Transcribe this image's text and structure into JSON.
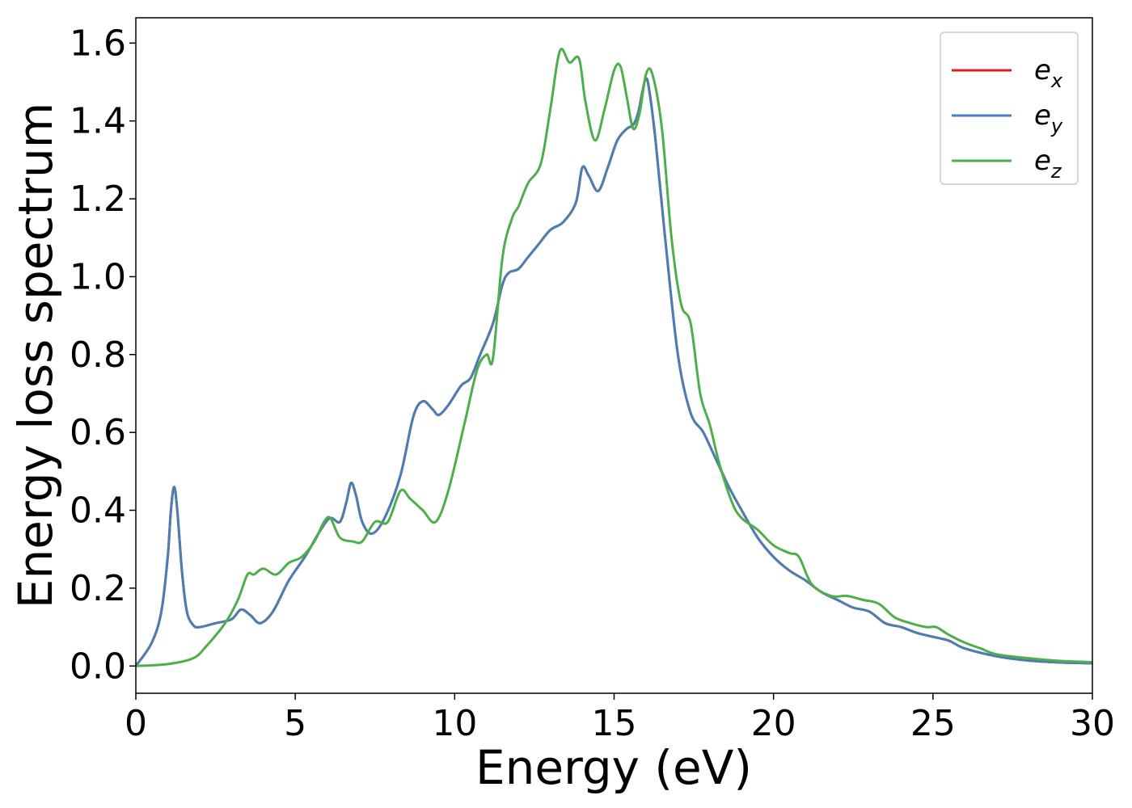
{
  "chart_data": {
    "type": "line",
    "title": "",
    "xlabel": "Energy (eV)",
    "ylabel": "Energy loss spectrum",
    "xlim": [
      0,
      30
    ],
    "ylim": [
      -0.07,
      1.665
    ],
    "xticks": [
      0,
      5,
      10,
      15,
      20,
      25,
      30
    ],
    "xtick_labels": [
      "0",
      "5",
      "10",
      "15",
      "20",
      "25",
      "30"
    ],
    "yticks": [
      0.0,
      0.2,
      0.4,
      0.6,
      0.8,
      1.0,
      1.2,
      1.4,
      1.6
    ],
    "ytick_labels": [
      "0.0",
      "0.2",
      "0.4",
      "0.6",
      "0.8",
      "1.0",
      "1.2",
      "1.4",
      "1.6"
    ],
    "grid": false,
    "legend_position": "top-right",
    "series": [
      {
        "name": "e_x",
        "legend_base": "e",
        "legend_sub": "x",
        "color": "#e41a1c",
        "x": [
          0,
          0.5,
          0.8,
          1.0,
          1.1,
          1.2,
          1.3,
          1.45,
          1.6,
          1.8,
          2.0,
          2.5,
          3.0,
          3.3,
          3.6,
          3.9,
          4.3,
          4.8,
          5.3,
          5.8,
          6.1,
          6.4,
          6.6,
          6.75,
          6.9,
          7.1,
          7.4,
          7.8,
          8.3,
          8.7,
          9.0,
          9.3,
          9.5,
          9.8,
          10.2,
          10.5,
          10.8,
          11.2,
          11.5,
          11.7,
          12.0,
          12.3,
          12.6,
          13.0,
          13.4,
          13.8,
          14.0,
          14.2,
          14.5,
          14.8,
          15.1,
          15.4,
          15.6,
          15.75,
          15.9,
          16.0,
          16.1,
          16.3,
          16.6,
          17.0,
          17.4,
          17.8,
          18.2,
          18.6,
          19.0,
          19.5,
          20.0,
          20.5,
          21.0,
          21.5,
          22.0,
          22.5,
          23.0,
          23.5,
          24.0,
          24.5,
          25.0,
          25.5,
          26.0,
          27.0,
          28.0,
          29.0,
          30.0
        ],
        "values": [
          0.0,
          0.06,
          0.14,
          0.28,
          0.4,
          0.46,
          0.4,
          0.24,
          0.14,
          0.105,
          0.1,
          0.11,
          0.12,
          0.145,
          0.13,
          0.11,
          0.14,
          0.22,
          0.28,
          0.35,
          0.38,
          0.37,
          0.42,
          0.47,
          0.44,
          0.37,
          0.34,
          0.38,
          0.49,
          0.64,
          0.68,
          0.66,
          0.645,
          0.67,
          0.72,
          0.74,
          0.8,
          0.88,
          0.98,
          1.01,
          1.02,
          1.05,
          1.08,
          1.12,
          1.14,
          1.19,
          1.28,
          1.26,
          1.22,
          1.28,
          1.35,
          1.38,
          1.39,
          1.42,
          1.48,
          1.51,
          1.48,
          1.35,
          1.1,
          0.8,
          0.65,
          0.6,
          0.53,
          0.46,
          0.4,
          0.33,
          0.28,
          0.245,
          0.22,
          0.19,
          0.17,
          0.15,
          0.14,
          0.11,
          0.1,
          0.085,
          0.075,
          0.065,
          0.045,
          0.025,
          0.014,
          0.009,
          0.007
        ]
      },
      {
        "name": "e_y",
        "legend_base": "e",
        "legend_sub": "y",
        "color": "#4a7fb5",
        "x": [
          0,
          0.5,
          0.8,
          1.0,
          1.1,
          1.2,
          1.3,
          1.45,
          1.6,
          1.8,
          2.0,
          2.5,
          3.0,
          3.3,
          3.6,
          3.9,
          4.3,
          4.8,
          5.3,
          5.8,
          6.1,
          6.4,
          6.6,
          6.75,
          6.9,
          7.1,
          7.4,
          7.8,
          8.3,
          8.7,
          9.0,
          9.3,
          9.5,
          9.8,
          10.2,
          10.5,
          10.8,
          11.2,
          11.5,
          11.7,
          12.0,
          12.3,
          12.6,
          13.0,
          13.4,
          13.8,
          14.0,
          14.2,
          14.5,
          14.8,
          15.1,
          15.4,
          15.6,
          15.75,
          15.9,
          16.0,
          16.1,
          16.3,
          16.6,
          17.0,
          17.4,
          17.8,
          18.2,
          18.6,
          19.0,
          19.5,
          20.0,
          20.5,
          21.0,
          21.5,
          22.0,
          22.5,
          23.0,
          23.5,
          24.0,
          24.5,
          25.0,
          25.5,
          26.0,
          27.0,
          28.0,
          29.0,
          30.0
        ],
        "values": [
          0.0,
          0.06,
          0.14,
          0.28,
          0.4,
          0.46,
          0.4,
          0.24,
          0.14,
          0.105,
          0.1,
          0.11,
          0.12,
          0.145,
          0.13,
          0.11,
          0.14,
          0.22,
          0.28,
          0.35,
          0.38,
          0.37,
          0.42,
          0.47,
          0.44,
          0.37,
          0.34,
          0.38,
          0.49,
          0.64,
          0.68,
          0.66,
          0.645,
          0.67,
          0.72,
          0.74,
          0.8,
          0.88,
          0.98,
          1.01,
          1.02,
          1.05,
          1.08,
          1.12,
          1.14,
          1.19,
          1.28,
          1.26,
          1.22,
          1.28,
          1.35,
          1.38,
          1.39,
          1.42,
          1.48,
          1.51,
          1.48,
          1.35,
          1.1,
          0.8,
          0.65,
          0.6,
          0.53,
          0.46,
          0.4,
          0.33,
          0.28,
          0.245,
          0.22,
          0.19,
          0.17,
          0.15,
          0.14,
          0.11,
          0.1,
          0.085,
          0.075,
          0.065,
          0.045,
          0.025,
          0.014,
          0.009,
          0.007
        ]
      },
      {
        "name": "e_z",
        "legend_base": "e",
        "legend_sub": "z",
        "color": "#4daf4a",
        "x": [
          0,
          1.0,
          1.8,
          2.2,
          2.8,
          3.2,
          3.5,
          3.7,
          4.0,
          4.4,
          4.8,
          5.2,
          5.6,
          5.9,
          6.1,
          6.4,
          6.8,
          7.1,
          7.5,
          7.9,
          8.3,
          8.6,
          9.0,
          9.4,
          9.8,
          10.3,
          10.7,
          11.0,
          11.2,
          11.5,
          11.8,
          12.0,
          12.3,
          12.7,
          13.0,
          13.3,
          13.6,
          13.9,
          14.1,
          14.4,
          14.7,
          15.0,
          15.2,
          15.4,
          15.6,
          15.8,
          16.0,
          16.2,
          16.5,
          16.8,
          17.1,
          17.4,
          17.7,
          18.0,
          18.3,
          18.7,
          19.0,
          19.5,
          20.0,
          20.5,
          20.8,
          21.2,
          21.8,
          22.3,
          22.8,
          23.3,
          23.8,
          24.3,
          24.8,
          25.1,
          25.5,
          26.0,
          26.5,
          27.0,
          28.0,
          29.0,
          30.0
        ],
        "values": [
          0.0,
          0.005,
          0.02,
          0.05,
          0.11,
          0.17,
          0.235,
          0.235,
          0.25,
          0.235,
          0.265,
          0.28,
          0.32,
          0.37,
          0.38,
          0.33,
          0.32,
          0.32,
          0.37,
          0.37,
          0.45,
          0.43,
          0.4,
          0.37,
          0.45,
          0.62,
          0.76,
          0.8,
          0.79,
          1.05,
          1.15,
          1.18,
          1.24,
          1.29,
          1.43,
          1.58,
          1.55,
          1.56,
          1.45,
          1.35,
          1.43,
          1.53,
          1.54,
          1.46,
          1.38,
          1.42,
          1.52,
          1.52,
          1.38,
          1.1,
          0.93,
          0.88,
          0.7,
          0.62,
          0.52,
          0.42,
          0.38,
          0.35,
          0.31,
          0.29,
          0.28,
          0.21,
          0.18,
          0.18,
          0.17,
          0.16,
          0.125,
          0.11,
          0.1,
          0.1,
          0.08,
          0.06,
          0.045,
          0.03,
          0.02,
          0.013,
          0.01
        ]
      }
    ]
  }
}
